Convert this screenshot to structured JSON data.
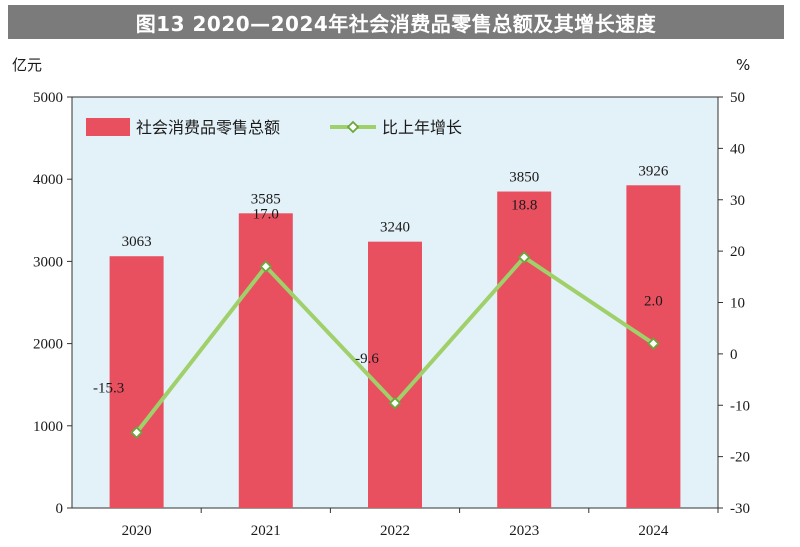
{
  "title": "图13  2020—2024年社会消费品零售总额及其增长速度",
  "chart_data": {
    "type": "bar",
    "categories": [
      "2020",
      "2021",
      "2022",
      "2023",
      "2024"
    ],
    "series": [
      {
        "name": "社会消费品零售总额",
        "type": "bar",
        "axis": "left",
        "values": [
          3063,
          3585,
          3240,
          3850,
          3926
        ],
        "color": "#e8505f"
      },
      {
        "name": "比上年增长",
        "type": "line",
        "axis": "right",
        "values": [
          -15.3,
          17.0,
          -9.6,
          18.8,
          2.0
        ],
        "color": "#9fd06a"
      }
    ],
    "bar_labels": [
      "3063",
      "3585",
      "3240",
      "3850",
      "3926"
    ],
    "line_labels": [
      "-15.3",
      "17.0",
      "-9.6",
      "18.8",
      "2.0"
    ],
    "y_left": {
      "unit": "亿元",
      "ylim": [
        0,
        5000
      ],
      "ticks": [
        "0",
        "1000",
        "2000",
        "3000",
        "4000",
        "5000"
      ]
    },
    "y_right": {
      "unit": "%",
      "ylim": [
        -30,
        50
      ],
      "ticks": [
        "-30",
        "-20",
        "-10",
        "0",
        "10",
        "20",
        "30",
        "40",
        "50"
      ]
    },
    "legend_position": "top-left",
    "plot_background": "#e3f1f8"
  }
}
